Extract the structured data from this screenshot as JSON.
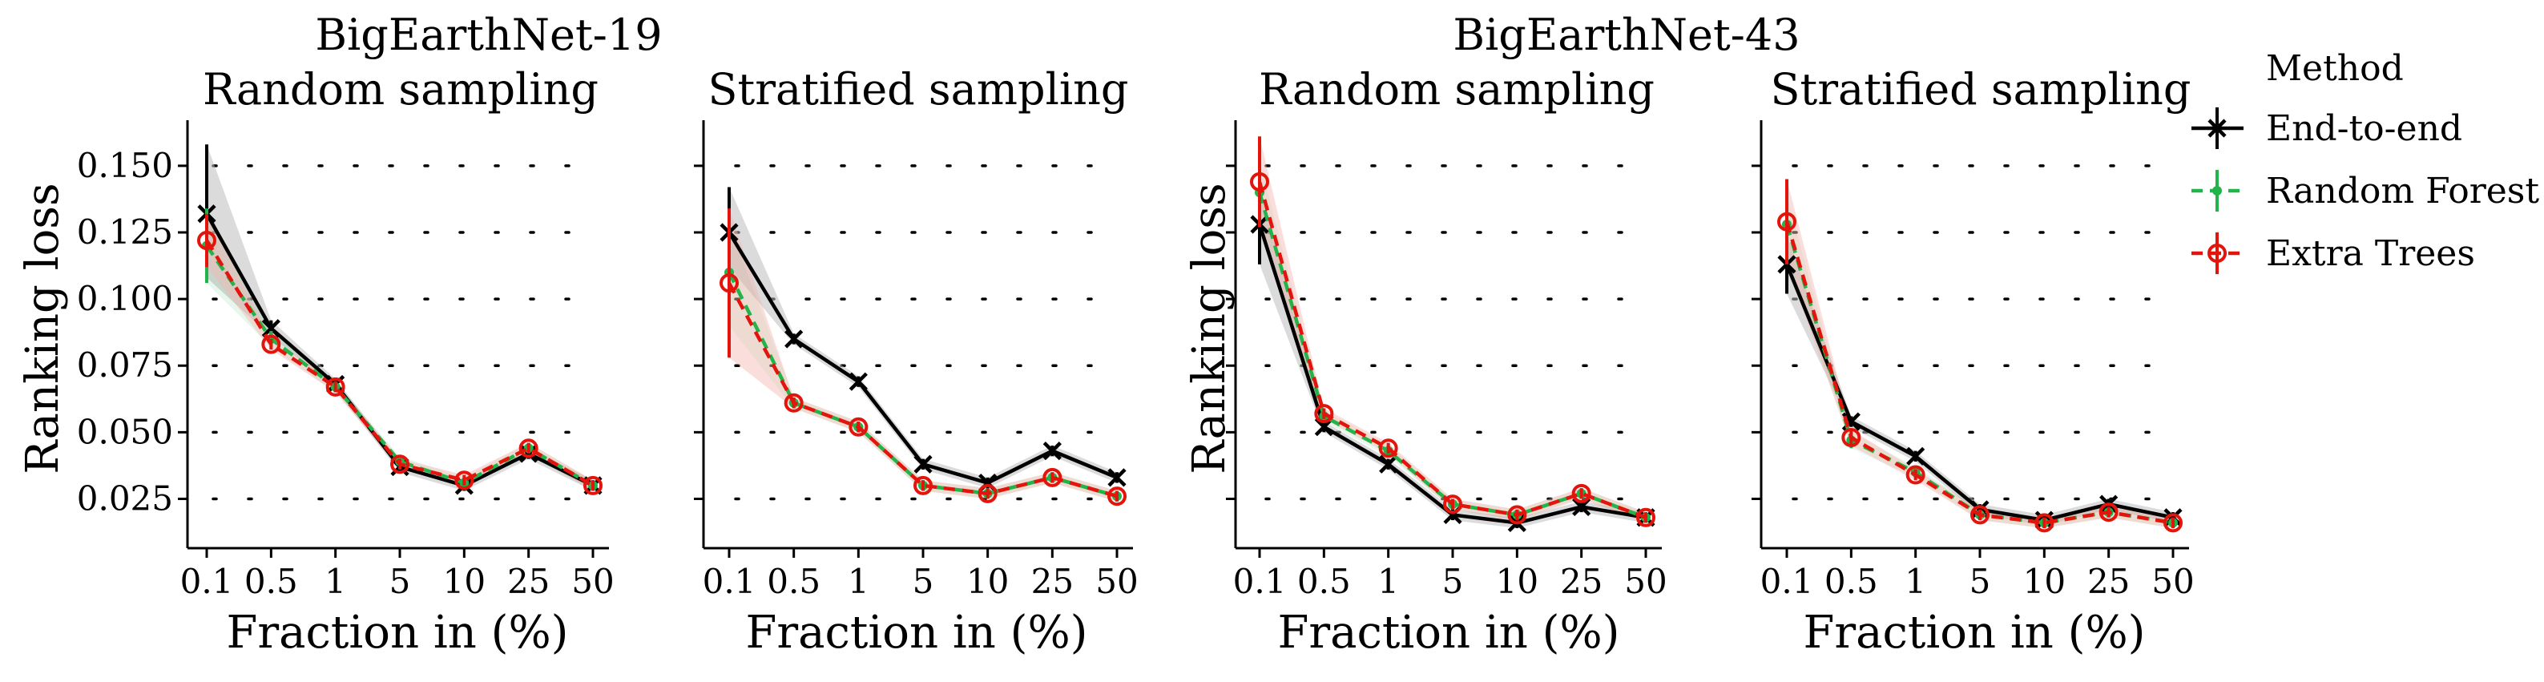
{
  "group_titles": [
    "BigEarthNet-19",
    "BigEarthNet-43"
  ],
  "legend": {
    "title": "Method",
    "items": [
      {
        "label": "End-to-end",
        "color": "#000000",
        "marker": "x",
        "dash": "solid"
      },
      {
        "label": "Random Forest",
        "color": "#22b34a",
        "marker": "dot",
        "dash": "dashed"
      },
      {
        "label": "Extra Trees",
        "color": "#e3140c",
        "marker": "circle",
        "dash": "dashed"
      }
    ]
  },
  "colors": {
    "end_to_end": "#000000",
    "random_forest": "#22b34a",
    "extra_trees": "#e3140c",
    "band_gray": "#bdbdbd",
    "band_red": "#f4b6b0"
  },
  "chart_data": [
    {
      "type": "line",
      "group": "BigEarthNet-19",
      "title": "Random sampling",
      "xlabel": "Fraction in (%)",
      "ylabel": "Ranking loss",
      "x": [
        "0.1",
        "0.5",
        "1",
        "5",
        "10",
        "25",
        "50"
      ],
      "ylim": [
        0.0077,
        0.1641
      ],
      "yticks": [
        "0.025",
        "0.050",
        "0.075",
        "0.100",
        "0.125",
        "0.150"
      ],
      "grid": "dotted horizontal",
      "series": [
        {
          "name": "End-to-end",
          "values": [
            0.132,
            0.089,
            0.068,
            0.037,
            0.03,
            0.042,
            0.03
          ],
          "err_low": [
            0.108,
            0.086,
            0.066,
            0.035,
            0.028,
            0.04,
            0.028
          ],
          "err_high": [
            0.158,
            0.092,
            0.07,
            0.039,
            0.032,
            0.044,
            0.032
          ]
        },
        {
          "name": "Random Forest",
          "values": [
            0.12,
            0.085,
            0.067,
            0.039,
            0.031,
            0.044,
            0.03
          ],
          "err_low": [
            0.106,
            0.082,
            0.065,
            0.037,
            0.029,
            0.042,
            0.028
          ],
          "err_high": [
            0.134,
            0.088,
            0.069,
            0.041,
            0.033,
            0.046,
            0.032
          ]
        },
        {
          "name": "Extra Trees",
          "values": [
            0.122,
            0.083,
            0.067,
            0.038,
            0.032,
            0.044,
            0.03
          ],
          "err_low": [
            0.112,
            0.081,
            0.065,
            0.036,
            0.03,
            0.042,
            0.028
          ],
          "err_high": [
            0.132,
            0.085,
            0.069,
            0.04,
            0.034,
            0.046,
            0.032
          ]
        }
      ]
    },
    {
      "type": "line",
      "group": "BigEarthNet-19",
      "title": "Stratified sampling",
      "xlabel": "Fraction in (%)",
      "ylabel": "",
      "x": [
        "0.1",
        "0.5",
        "1",
        "5",
        "10",
        "25",
        "50"
      ],
      "ylim": [
        0.0077,
        0.1641
      ],
      "yticks": [
        "0.025",
        "0.050",
        "0.075",
        "0.100",
        "0.125",
        "0.150"
      ],
      "grid": "dotted horizontal",
      "series": [
        {
          "name": "End-to-end",
          "values": [
            0.125,
            0.085,
            0.069,
            0.038,
            0.031,
            0.043,
            0.033
          ],
          "err_low": [
            0.112,
            0.083,
            0.067,
            0.036,
            0.029,
            0.041,
            0.031
          ],
          "err_high": [
            0.142,
            0.087,
            0.071,
            0.04,
            0.033,
            0.045,
            0.035
          ]
        },
        {
          "name": "Random Forest",
          "values": [
            0.11,
            0.061,
            0.052,
            0.03,
            0.027,
            0.033,
            0.026
          ],
          "err_low": [
            0.09,
            0.059,
            0.05,
            0.028,
            0.025,
            0.031,
            0.024
          ],
          "err_high": [
            0.128,
            0.063,
            0.054,
            0.032,
            0.029,
            0.035,
            0.028
          ]
        },
        {
          "name": "Extra Trees",
          "values": [
            0.106,
            0.061,
            0.052,
            0.03,
            0.027,
            0.033,
            0.026
          ],
          "err_low": [
            0.078,
            0.059,
            0.05,
            0.028,
            0.025,
            0.031,
            0.024
          ],
          "err_high": [
            0.134,
            0.063,
            0.054,
            0.032,
            0.029,
            0.035,
            0.028
          ]
        }
      ]
    },
    {
      "type": "line",
      "group": "BigEarthNet-43",
      "title": "Random sampling",
      "xlabel": "Fraction in (%)",
      "ylabel": "Ranking loss",
      "x": [
        "0.1",
        "0.5",
        "1",
        "5",
        "10",
        "25",
        "50"
      ],
      "ylim": [
        0.0077,
        0.1641
      ],
      "yticks": [
        "",
        "",
        "",
        "",
        "",
        ""
      ],
      "grid": "dotted horizontal",
      "series": [
        {
          "name": "End-to-end",
          "values": [
            0.128,
            0.052,
            0.038,
            0.019,
            0.016,
            0.022,
            0.018
          ],
          "err_low": [
            0.113,
            0.05,
            0.036,
            0.017,
            0.014,
            0.02,
            0.016
          ],
          "err_high": [
            0.142,
            0.054,
            0.04,
            0.021,
            0.018,
            0.024,
            0.02
          ]
        },
        {
          "name": "Random Forest",
          "values": [
            0.14,
            0.056,
            0.043,
            0.023,
            0.019,
            0.027,
            0.018
          ],
          "err_low": [
            0.128,
            0.054,
            0.041,
            0.021,
            0.017,
            0.025,
            0.016
          ],
          "err_high": [
            0.152,
            0.058,
            0.045,
            0.025,
            0.021,
            0.029,
            0.02
          ]
        },
        {
          "name": "Extra Trees",
          "values": [
            0.144,
            0.057,
            0.044,
            0.023,
            0.019,
            0.027,
            0.018
          ],
          "err_low": [
            0.127,
            0.055,
            0.042,
            0.021,
            0.017,
            0.025,
            0.016
          ],
          "err_high": [
            0.161,
            0.059,
            0.046,
            0.025,
            0.021,
            0.029,
            0.02
          ]
        }
      ]
    },
    {
      "type": "line",
      "group": "BigEarthNet-43",
      "title": "Stratified sampling",
      "xlabel": "Fraction in (%)",
      "ylabel": "",
      "x": [
        "0.1",
        "0.5",
        "1",
        "5",
        "10",
        "25",
        "50"
      ],
      "ylim": [
        0.0077,
        0.1641
      ],
      "yticks": [
        "",
        "",
        "",
        "",
        "",
        ""
      ],
      "grid": "dotted horizontal",
      "series": [
        {
          "name": "End-to-end",
          "values": [
            0.113,
            0.054,
            0.041,
            0.021,
            0.017,
            0.023,
            0.018
          ],
          "err_low": [
            0.102,
            0.052,
            0.039,
            0.019,
            0.015,
            0.021,
            0.016
          ],
          "err_high": [
            0.124,
            0.056,
            0.043,
            0.023,
            0.019,
            0.025,
            0.02
          ]
        },
        {
          "name": "Random Forest",
          "values": [
            0.128,
            0.047,
            0.035,
            0.019,
            0.016,
            0.02,
            0.016
          ],
          "err_low": [
            0.117,
            0.044,
            0.033,
            0.017,
            0.014,
            0.018,
            0.014
          ],
          "err_high": [
            0.139,
            0.05,
            0.037,
            0.021,
            0.018,
            0.022,
            0.018
          ]
        },
        {
          "name": "Extra Trees",
          "values": [
            0.129,
            0.048,
            0.034,
            0.019,
            0.016,
            0.02,
            0.016
          ],
          "err_low": [
            0.113,
            0.045,
            0.032,
            0.017,
            0.014,
            0.018,
            0.014
          ],
          "err_high": [
            0.145,
            0.051,
            0.036,
            0.021,
            0.018,
            0.022,
            0.018
          ]
        }
      ]
    }
  ]
}
